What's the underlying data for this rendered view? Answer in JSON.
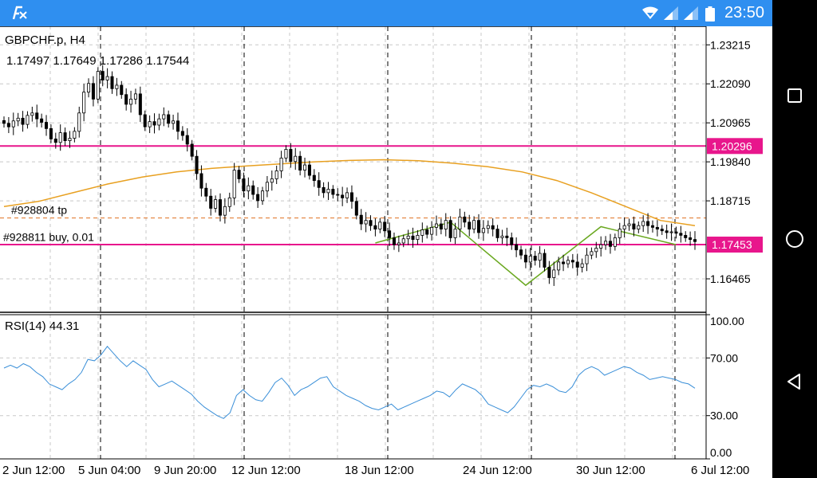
{
  "status_bar": {
    "time": "23:50",
    "app_icon": "metatrader-fx-icon",
    "icons": [
      "wifi-icon",
      "signal-icon",
      "signal-icon",
      "battery-icon"
    ]
  },
  "nav_bar": {
    "icons": [
      "recent-apps-icon",
      "home-icon",
      "back-icon"
    ]
  },
  "chart_data": [
    {
      "type": "candlestick",
      "title": "GBPCHF.p, H4",
      "ohlc_text": "1.17497 1.17649 1.17286 1.17544",
      "ylim": [
        1.155,
        1.2375
      ],
      "y_ticks": [
        "1.23215",
        "1.22090",
        "1.20965",
        "1.19840",
        "1.18715",
        "1.16465"
      ],
      "x_tick_labels": [
        "2 Jun 12:00",
        "5 Jun 04:00",
        "9 Jun 20:00",
        "12 Jun 12:00",
        "18 Jun 12:00",
        "24 Jun 12:00",
        "30 Jun 12:00",
        "6 Jul 12:00"
      ],
      "close_prices": [
        1.2095,
        1.2085,
        1.2102,
        1.211,
        1.2092,
        1.2118,
        1.2125,
        1.2108,
        1.2098,
        1.208,
        1.205,
        1.204,
        1.2068,
        1.2045,
        1.2052,
        1.2072,
        1.2125,
        1.2185,
        1.221,
        1.2165,
        1.2245,
        1.222,
        1.223,
        1.2195,
        1.2205,
        1.2178,
        1.215,
        1.2165,
        1.218,
        1.212,
        1.2085,
        1.21,
        1.209,
        1.2108,
        1.212,
        1.2095,
        1.2102,
        1.2072,
        1.206,
        1.2035,
        1.2,
        1.195,
        1.1908,
        1.1885,
        1.185,
        1.1875,
        1.183,
        1.1855,
        1.188,
        1.196,
        1.1935,
        1.19,
        1.1915,
        1.189,
        1.1872,
        1.19,
        1.1925,
        1.1935,
        1.1958,
        1.1995,
        1.202,
        1.1985,
        1.2,
        1.196,
        1.1975,
        1.1945,
        1.193,
        1.191,
        1.1895,
        1.1905,
        1.189,
        1.1888,
        1.188,
        1.1895,
        1.187,
        1.183,
        1.1805,
        1.1815,
        1.18,
        1.179,
        1.181,
        1.1785,
        1.1765,
        1.1745,
        1.175,
        1.1762,
        1.177,
        1.176,
        1.1772,
        1.1788,
        1.1775,
        1.1795,
        1.1805,
        1.179,
        1.1815,
        1.1765,
        1.179,
        1.1825,
        1.181,
        1.179,
        1.1815,
        1.178,
        1.1792,
        1.18,
        1.179,
        1.1765,
        1.177,
        1.1765,
        1.1745,
        1.173,
        1.1715,
        1.1695,
        1.1712,
        1.17,
        1.172,
        1.168,
        1.165,
        1.1672,
        1.1695,
        1.169,
        1.17,
        1.1695,
        1.168,
        1.169,
        1.1715,
        1.1725,
        1.1735,
        1.1745,
        1.1755,
        1.174,
        1.1765,
        1.179,
        1.18,
        1.1805,
        1.179,
        1.18,
        1.1812,
        1.18,
        1.1795,
        1.179,
        1.1785,
        1.178,
        1.1782,
        1.1778,
        1.1772,
        1.1765,
        1.176,
        1.1754
      ],
      "moving_average": [
        1.1855,
        1.187,
        1.1895,
        1.192,
        1.194,
        1.1955,
        1.1965,
        1.1972,
        1.1978,
        1.1984,
        1.1988,
        1.199,
        1.1987,
        1.198,
        1.197,
        1.1955,
        1.193,
        1.1895,
        1.1855,
        1.1815,
        1.18
      ],
      "horizontal_lines": [
        {
          "value": 1.20296,
          "label": "1.20296",
          "color": "#e8168c"
        },
        {
          "value": 1.17453,
          "label": "1.17453",
          "color": "#e8168c"
        }
      ],
      "annotations": [
        {
          "text": "#928804 tp",
          "value": 1.1822
        },
        {
          "text": "#928811 buy, 0.01",
          "value": 1.1753
        }
      ],
      "zigzag": [
        [
          0,
          1.175
        ],
        [
          16,
          1.181
        ],
        [
          32,
          1.1628
        ],
        [
          48,
          1.1797
        ],
        [
          64,
          1.1745
        ]
      ],
      "colors": {
        "candle": "#000000",
        "ma": "#e8a020",
        "zigzag": "#6aa820",
        "grid": "#c8c8c8",
        "tp_line": "#e07020"
      }
    },
    {
      "type": "line",
      "title": "RSI(14) 44.31",
      "ylim": [
        0,
        100
      ],
      "y_ticks": [
        "100.00",
        "70.00",
        "30.00",
        "0.00"
      ],
      "values": [
        63,
        65,
        63,
        66,
        64,
        60,
        57,
        52,
        50,
        48,
        52,
        55,
        60,
        69,
        68,
        72,
        78,
        73,
        68,
        64,
        68,
        65,
        62,
        55,
        50,
        52,
        54,
        51,
        48,
        45,
        40,
        36,
        33,
        30,
        28,
        32,
        44,
        48,
        44,
        41,
        40,
        46,
        53,
        56,
        51,
        44,
        48,
        50,
        53,
        56,
        57,
        50,
        47,
        44,
        42,
        40,
        37,
        35,
        34,
        36,
        38,
        34,
        36,
        38,
        40,
        42,
        44,
        47,
        46,
        43,
        48,
        52,
        50,
        48,
        44,
        38,
        36,
        34,
        32,
        36,
        42,
        48,
        51,
        50,
        52,
        50,
        47,
        46,
        50,
        58,
        62,
        64,
        62,
        58,
        60,
        62,
        64,
        63,
        60,
        58,
        55,
        56,
        57,
        56,
        55,
        53,
        52,
        49
      ]
    }
  ]
}
